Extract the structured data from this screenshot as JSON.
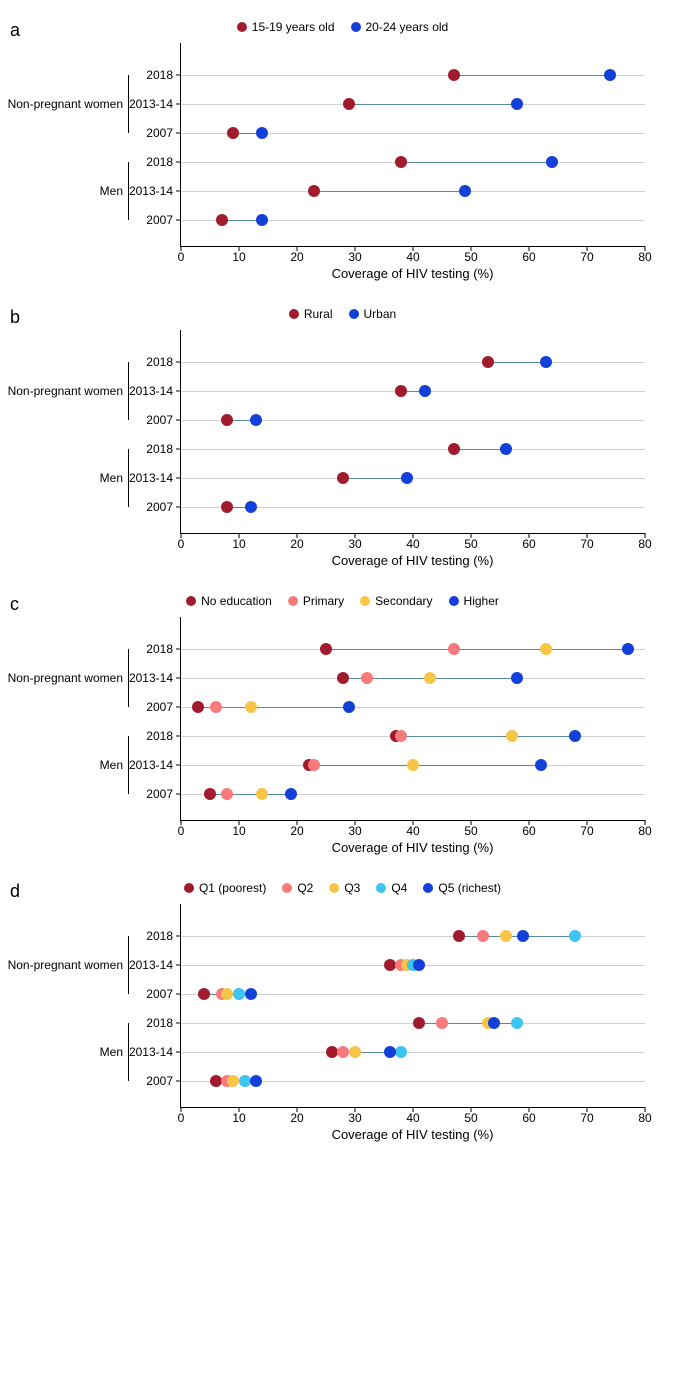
{
  "global": {
    "xlabel": "Coverage of HIV testing (%)",
    "xlim": [
      0,
      80
    ],
    "xtick_step": 10,
    "groups": [
      {
        "label": "Non-pregnant women",
        "years": [
          "2018",
          "2013-14",
          "2007"
        ]
      },
      {
        "label": "Men",
        "years": [
          "2018",
          "2013-14",
          "2007"
        ]
      }
    ],
    "connector_color": "#5a8a99",
    "grid_color": "#d0d0d0",
    "plot_height_per_row": 29,
    "plot_top_pad": 18,
    "plot_bottom_pad": 12,
    "axis_fontsize": 12,
    "label_fontsize": 13,
    "panel_label_fontsize": 18
  },
  "panels": [
    {
      "id": "a",
      "series": [
        {
          "label": "15-19 years old",
          "color": "#a01c2d"
        },
        {
          "label": "20-24 years old",
          "color": "#1240d8"
        }
      ],
      "rows": [
        {
          "values": [
            47,
            74
          ]
        },
        {
          "values": [
            29,
            58
          ]
        },
        {
          "values": [
            9,
            14
          ]
        },
        {
          "values": [
            38,
            64
          ]
        },
        {
          "values": [
            23,
            49
          ]
        },
        {
          "values": [
            7,
            14
          ]
        }
      ]
    },
    {
      "id": "b",
      "series": [
        {
          "label": "Rural",
          "color": "#a01c2d"
        },
        {
          "label": "Urban",
          "color": "#1240d8"
        }
      ],
      "rows": [
        {
          "values": [
            53,
            63
          ]
        },
        {
          "values": [
            38,
            42
          ]
        },
        {
          "values": [
            8,
            13
          ]
        },
        {
          "values": [
            47,
            56
          ]
        },
        {
          "values": [
            28,
            39
          ]
        },
        {
          "values": [
            8,
            12
          ]
        }
      ]
    },
    {
      "id": "c",
      "series": [
        {
          "label": "No education",
          "color": "#a01c2d"
        },
        {
          "label": "Primary",
          "color": "#f97a7a"
        },
        {
          "label": "Secondary",
          "color": "#f7c548"
        },
        {
          "label": "Higher",
          "color": "#1240d8"
        }
      ],
      "rows": [
        {
          "values": [
            25,
            47,
            63,
            77
          ]
        },
        {
          "values": [
            28,
            32,
            43,
            58
          ]
        },
        {
          "values": [
            3,
            6,
            12,
            29
          ]
        },
        {
          "values": [
            37,
            38,
            57,
            68
          ]
        },
        {
          "values": [
            22,
            23,
            40,
            62
          ]
        },
        {
          "values": [
            5,
            8,
            14,
            19
          ]
        }
      ]
    },
    {
      "id": "d",
      "series": [
        {
          "label": "Q1 (poorest)",
          "color": "#a01c2d"
        },
        {
          "label": "Q2",
          "color": "#f97a7a"
        },
        {
          "label": "Q3",
          "color": "#f7c548"
        },
        {
          "label": "Q4",
          "color": "#3ec4f0"
        },
        {
          "label": "Q5 (richest)",
          "color": "#1240d8"
        }
      ],
      "rows": [
        {
          "values": [
            48,
            52,
            56,
            68,
            59
          ]
        },
        {
          "values": [
            36,
            38,
            39,
            40,
            41
          ]
        },
        {
          "values": [
            4,
            7,
            8,
            10,
            12
          ]
        },
        {
          "values": [
            41,
            45,
            53,
            58,
            54
          ]
        },
        {
          "values": [
            26,
            28,
            30,
            38,
            36
          ]
        },
        {
          "values": [
            6,
            8,
            9,
            11,
            13
          ]
        }
      ]
    }
  ]
}
